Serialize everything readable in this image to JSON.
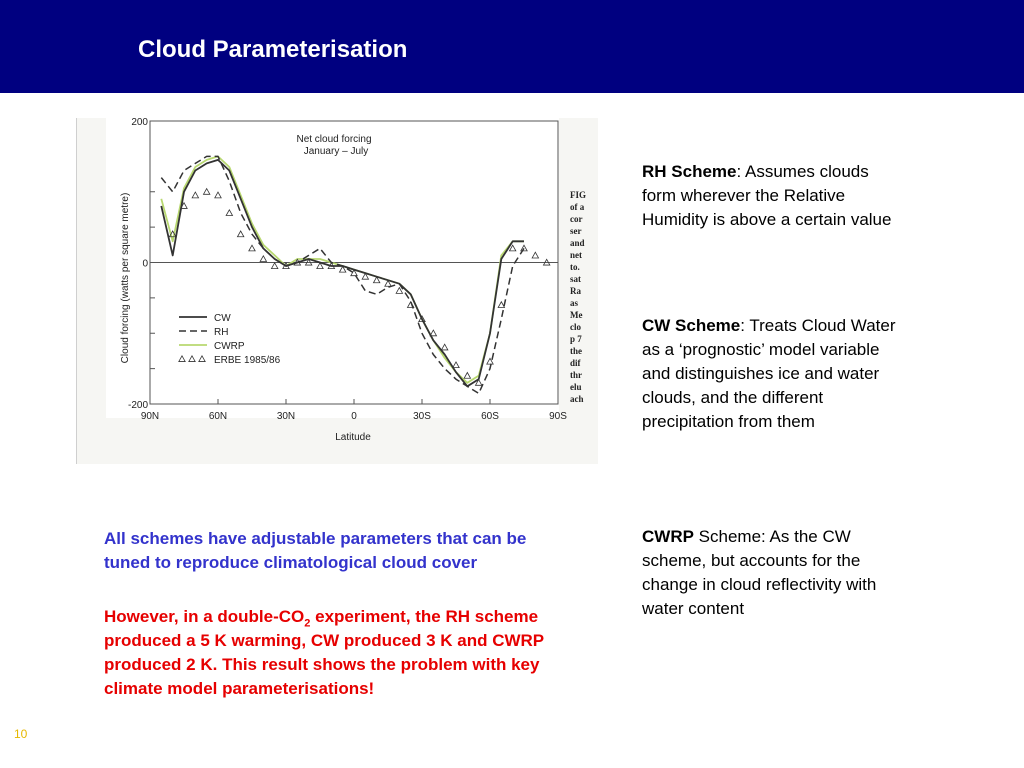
{
  "slide": {
    "title": "Cloud Parameterisation",
    "page_number": "10",
    "colors": {
      "header": "#000080",
      "blue_note": "#3333cc",
      "red_note": "#e60000"
    }
  },
  "figure": {
    "title_line1": "Net cloud forcing",
    "title_line2": "January – July",
    "ylabel": "Cloud forcing (watts per square metre)",
    "xlabel": "Latitude",
    "caption_fragments": [
      "FIG",
      "of a",
      "cor",
      "ser",
      "and",
      "net",
      "to.",
      "sat",
      "Ra",
      "as",
      "Me",
      "clo",
      "p 7",
      "the",
      "dif",
      "thr",
      "elu",
      "ach"
    ],
    "legend": [
      "CW",
      "RH",
      "CWRP",
      "ERBE 1985/86"
    ],
    "chart_data": {
      "type": "line",
      "title": "Net cloud forcing January – July",
      "xlabel": "Latitude",
      "ylabel": "Cloud forcing (watts per square metre)",
      "x_ticks": [
        "90N",
        "60N",
        "30N",
        "0",
        "30S",
        "60S",
        "90S"
      ],
      "y_ticks": [
        "200",
        "0",
        "-200"
      ],
      "xlim": [
        90,
        -90
      ],
      "ylim": [
        -200,
        200
      ],
      "x": [
        85,
        80,
        75,
        70,
        65,
        60,
        55,
        50,
        45,
        40,
        35,
        30,
        25,
        20,
        15,
        10,
        5,
        0,
        -5,
        -10,
        -15,
        -20,
        -25,
        -30,
        -35,
        -40,
        -45,
        -50,
        -55,
        -60,
        -65,
        -70,
        -75,
        -80,
        -85
      ],
      "series": [
        {
          "name": "CW",
          "style": "solid",
          "color": "#333333",
          "values": [
            80,
            10,
            100,
            130,
            140,
            145,
            130,
            90,
            50,
            20,
            5,
            -5,
            0,
            5,
            0,
            -5,
            -5,
            -10,
            -15,
            -20,
            -25,
            -30,
            -45,
            -80,
            -110,
            -130,
            -155,
            -175,
            -165,
            -100,
            5,
            30,
            30,
            null,
            null
          ]
        },
        {
          "name": "RH",
          "style": "dashed",
          "color": "#333333",
          "values": [
            120,
            100,
            130,
            140,
            150,
            150,
            115,
            70,
            40,
            20,
            5,
            -5,
            0,
            10,
            20,
            0,
            -5,
            -15,
            -40,
            -45,
            -35,
            -30,
            -55,
            -100,
            -130,
            -150,
            -165,
            -175,
            -185,
            -150,
            -80,
            -5,
            20,
            null,
            null
          ]
        },
        {
          "name": "CWRP",
          "style": "solid",
          "color": "#b8d870",
          "values": [
            90,
            30,
            105,
            135,
            145,
            150,
            135,
            95,
            55,
            25,
            10,
            -5,
            5,
            5,
            5,
            0,
            -5,
            -10,
            -15,
            -20,
            -25,
            -30,
            -45,
            -80,
            -110,
            -135,
            -155,
            -170,
            -160,
            -100,
            10,
            30,
            30,
            null,
            null
          ]
        },
        {
          "name": "ERBE 1985/86",
          "style": "triangles",
          "color": "#333333",
          "values": [
            null,
            40,
            80,
            95,
            100,
            95,
            70,
            40,
            20,
            5,
            -5,
            -5,
            0,
            0,
            -5,
            -5,
            -10,
            -15,
            -20,
            -25,
            -30,
            -40,
            -60,
            -80,
            -100,
            -120,
            -145,
            -160,
            -170,
            -140,
            -60,
            20,
            20,
            10,
            0
          ]
        }
      ]
    }
  },
  "descriptions": [
    {
      "term": "RH Scheme",
      "text": ": Assumes clouds form wherever the Relative Humidity is above a certain value"
    },
    {
      "term": "CW Scheme",
      "text": ": Treats Cloud Water as a ‘prognostic’ model variable and distinguishes ice and water clouds, and the different precipitation from them"
    },
    {
      "term": "CWRP",
      "text": " Scheme: As the CW scheme, but accounts for the change in cloud reflectivity with water content"
    }
  ],
  "notes": {
    "blue": "All schemes have adjustable parameters that can be tuned to reproduce climatological cloud cover",
    "red_before_sub": "However, in a double-CO",
    "red_sub": "2",
    "red_after_sub": " experiment, the RH scheme produced a 5 K warming, CW produced 3 K and CWRP produced 2 K. This result shows the problem with key climate model parameterisations!"
  }
}
